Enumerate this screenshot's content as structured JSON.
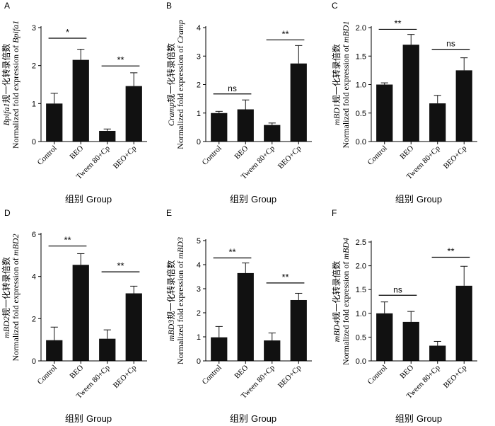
{
  "chart_data": [
    {
      "type": "bar",
      "panel": "A",
      "gene": "Bpifa1",
      "ylabel_gene": "Bpifa1",
      "ylabel_cn": "规一化转录倍数",
      "ylabel_en": "Normalized fold expression of",
      "categories": [
        "Control",
        "BEO",
        "Tween 80+Cp",
        "BEO+Cp"
      ],
      "values": [
        1.0,
        2.15,
        0.28,
        1.46
      ],
      "errors": [
        0.27,
        0.28,
        0.05,
        0.35
      ],
      "ylim": [
        0,
        3
      ],
      "ticks": [
        0,
        1,
        2,
        3
      ],
      "sig": [
        {
          "from": 0,
          "to": 1,
          "label": "*",
          "y": 2.72
        },
        {
          "from": 2,
          "to": 3,
          "label": "**",
          "y": 1.99
        }
      ],
      "xlabel_cn": "组别",
      "xlabel_en": "Group"
    },
    {
      "type": "bar",
      "panel": "B",
      "gene": "Cramp",
      "ylabel_gene": "Cramp",
      "ylabel_cn": "规一化转录倍数",
      "ylabel_en": "Normalized fold expression of",
      "categories": [
        "Control",
        "BEO",
        "Tween 80+Cp",
        "BEO+Cp"
      ],
      "values": [
        1.0,
        1.13,
        0.58,
        2.74
      ],
      "errors": [
        0.06,
        0.33,
        0.07,
        0.63
      ],
      "ylim": [
        0,
        4
      ],
      "ticks": [
        0,
        1,
        2,
        3,
        4
      ],
      "sig": [
        {
          "from": 0,
          "to": 1,
          "label": "ns",
          "y": 1.67
        },
        {
          "from": 2,
          "to": 3,
          "label": "**",
          "y": 3.57
        }
      ],
      "xlabel_cn": "组别",
      "xlabel_en": "Group"
    },
    {
      "type": "bar",
      "panel": "C",
      "gene": "mBD1",
      "ylabel_gene": "mBD1",
      "ylabel_cn": "规一化转录倍数",
      "ylabel_en": "Normalized fold expression of",
      "categories": [
        "Control",
        "BEO",
        "Tween 80+Cp",
        "BEO+Cp"
      ],
      "values": [
        1.0,
        1.7,
        0.67,
        1.25
      ],
      "errors": [
        0.03,
        0.18,
        0.14,
        0.22
      ],
      "ylim": [
        0,
        2.0
      ],
      "ticks": [
        0,
        0.5,
        1.0,
        1.5,
        2.0
      ],
      "tick_decimals": 1,
      "sig": [
        {
          "from": 0,
          "to": 1,
          "label": "**",
          "y": 1.97
        },
        {
          "from": 2,
          "to": 3,
          "label": "ns",
          "y": 1.62
        }
      ],
      "xlabel_cn": "组别",
      "xlabel_en": "Group"
    },
    {
      "type": "bar",
      "panel": "D",
      "gene": "mBD2",
      "ylabel_gene": "mBD2",
      "ylabel_cn": "规一化转录倍数",
      "ylabel_en": "Normalized fold expression of",
      "categories": [
        "Control",
        "BEO",
        "Tween 80+Cp",
        "BEO+Cp"
      ],
      "values": [
        0.98,
        4.55,
        1.05,
        3.2
      ],
      "errors": [
        0.62,
        0.53,
        0.42,
        0.34
      ],
      "ylim": [
        0,
        6
      ],
      "ticks": [
        0,
        2,
        4,
        6
      ],
      "sig": [
        {
          "from": 0,
          "to": 1,
          "label": "**",
          "y": 5.44
        },
        {
          "from": 2,
          "to": 3,
          "label": "**",
          "y": 4.22
        }
      ],
      "xlabel_cn": "组别",
      "xlabel_en": "Group"
    },
    {
      "type": "bar",
      "panel": "E",
      "gene": "mBD3",
      "ylabel_gene": "mBD3",
      "ylabel_cn": "规一化转录倍数",
      "ylabel_en": "Normalized fold expression of",
      "categories": [
        "Control",
        "BEO",
        "Tween 80+Cp",
        "BEO+Cp"
      ],
      "values": [
        0.98,
        3.65,
        0.85,
        2.53
      ],
      "errors": [
        0.45,
        0.42,
        0.31,
        0.28
      ],
      "ylim": [
        0,
        5
      ],
      "ticks": [
        0,
        1,
        2,
        3,
        4,
        5
      ],
      "sig": [
        {
          "from": 0,
          "to": 1,
          "label": "**",
          "y": 4.28
        },
        {
          "from": 2,
          "to": 3,
          "label": "**",
          "y": 3.24
        }
      ],
      "xlabel_cn": "组别",
      "xlabel_en": "Group"
    },
    {
      "type": "bar",
      "panel": "F",
      "gene": "mBD4",
      "ylabel_gene": "mBD4",
      "ylabel_cn": "规一化转录倍数",
      "ylabel_en": "Normalized fold expression of",
      "categories": [
        "Control",
        "BEO",
        "Tween 80+Cp",
        "BEO+Cp"
      ],
      "values": [
        1.0,
        0.82,
        0.32,
        1.58
      ],
      "errors": [
        0.24,
        0.22,
        0.09,
        0.41
      ],
      "ylim": [
        0,
        2.5
      ],
      "ticks": [
        0,
        0.5,
        1.0,
        1.5,
        2.0,
        2.5
      ],
      "tick_decimals": 1,
      "sig": [
        {
          "from": 0,
          "to": 1,
          "label": "ns",
          "y": 1.38
        },
        {
          "from": 2,
          "to": 3,
          "label": "**",
          "y": 2.18
        }
      ],
      "xlabel_cn": "组别",
      "xlabel_en": "Group"
    }
  ]
}
